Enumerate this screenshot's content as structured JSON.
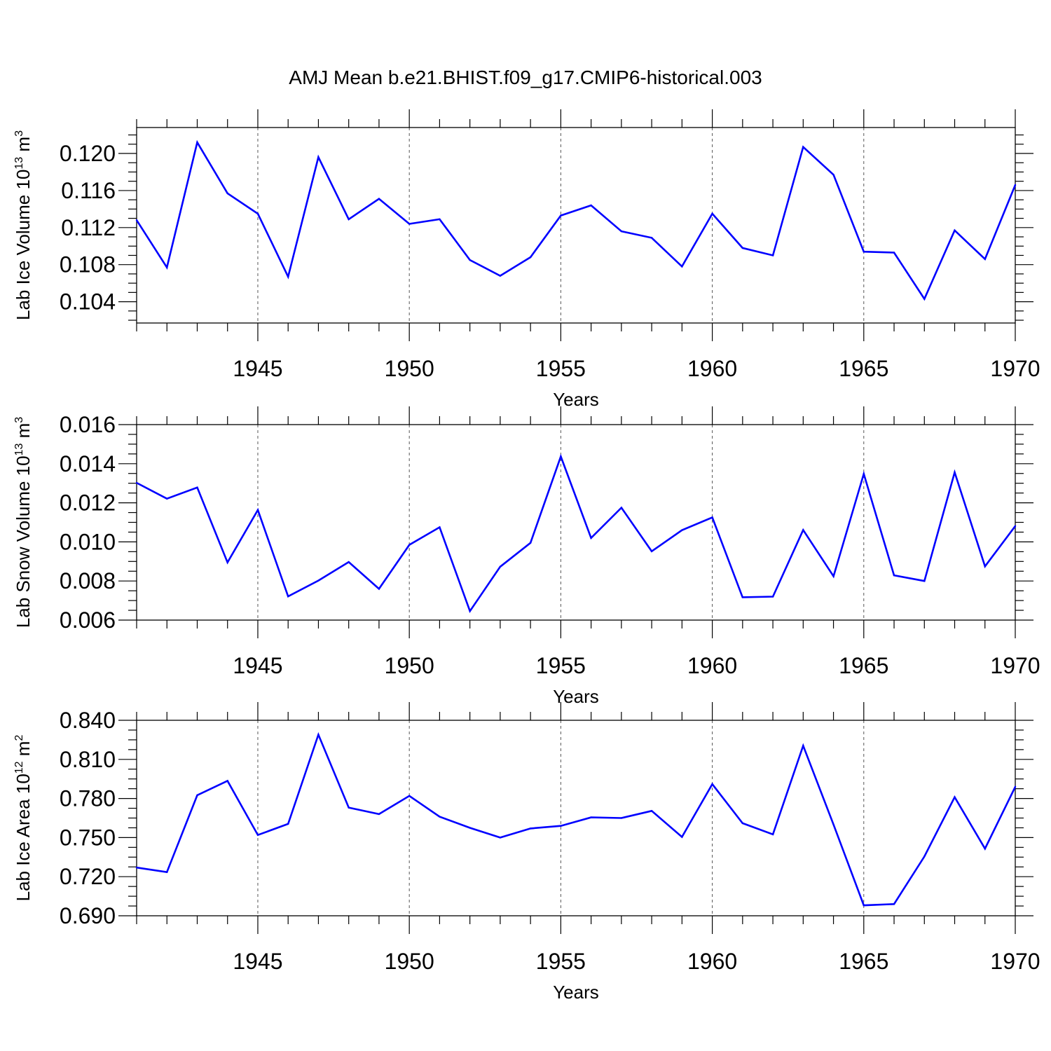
{
  "figure_title": "AMJ Mean b.e21.BHIST.f09_g17.CMIP6-historical.003",
  "line_color": "#0000ff",
  "chart_data": [
    {
      "type": "line",
      "title": "AMJ Mean b.e21.BHIST.f09_g17.CMIP6-historical.003",
      "xlabel": "Years",
      "ylabel_text": "Lab Ice Volume 10",
      "ylabel_exp": "13",
      "ylabel_unit": " m",
      "ylabel_unit_exp": "3",
      "xlim": [
        1941,
        1970
      ],
      "ylim": [
        0.1017,
        0.1228
      ],
      "xticks": [
        "1945",
        "1950",
        "1955",
        "1960",
        "1965",
        "1970"
      ],
      "yticks": [
        "0.104",
        "0.108",
        "0.112",
        "0.116",
        "0.120"
      ],
      "grid": "vertical dashed at major x ticks",
      "x": [
        1941,
        1942,
        1943,
        1944,
        1945,
        1946,
        1947,
        1948,
        1949,
        1950,
        1951,
        1952,
        1953,
        1954,
        1955,
        1956,
        1957,
        1958,
        1959,
        1960,
        1961,
        1962,
        1963,
        1964,
        1965,
        1966,
        1967,
        1968,
        1969,
        1970
      ],
      "y": [
        0.1128,
        0.1077,
        0.1212,
        0.1157,
        0.1135,
        0.1067,
        0.1196,
        0.1129,
        0.1151,
        0.1124,
        0.1129,
        0.1085,
        0.1068,
        0.1088,
        0.1133,
        0.1144,
        0.1116,
        0.1109,
        0.1078,
        0.1135,
        0.1098,
        0.109,
        0.1207,
        0.1177,
        0.1094,
        0.1093,
        0.1043,
        0.1117,
        0.1086,
        0.1166
      ]
    },
    {
      "type": "line",
      "xlabel": "Years",
      "ylabel_text": "Lab Snow Volume 10",
      "ylabel_exp": "13",
      "ylabel_unit": " m",
      "ylabel_unit_exp": "3",
      "xlim": [
        1941,
        1970
      ],
      "ylim": [
        0.006,
        0.016
      ],
      "xticks": [
        "1945",
        "1950",
        "1955",
        "1960",
        "1965",
        "1970"
      ],
      "yticks": [
        "0.006",
        "0.008",
        "0.010",
        "0.012",
        "0.014",
        "0.016"
      ],
      "grid": "vertical dashed at major x ticks",
      "x": [
        1941,
        1942,
        1943,
        1944,
        1945,
        1946,
        1947,
        1948,
        1949,
        1950,
        1951,
        1952,
        1953,
        1954,
        1955,
        1956,
        1957,
        1958,
        1959,
        1960,
        1961,
        1962,
        1963,
        1964,
        1965,
        1966,
        1967,
        1968,
        1969,
        1970
      ],
      "y": [
        0.01302,
        0.01221,
        0.01278,
        0.00895,
        0.01163,
        0.00721,
        0.00802,
        0.00897,
        0.0076,
        0.00985,
        0.01075,
        0.00646,
        0.00873,
        0.00995,
        0.01437,
        0.0102,
        0.01175,
        0.00952,
        0.0106,
        0.01125,
        0.00717,
        0.0072,
        0.01061,
        0.00824,
        0.01348,
        0.00829,
        0.008,
        0.01356,
        0.00875,
        0.01081
      ]
    },
    {
      "type": "line",
      "xlabel": "Years",
      "ylabel_text": "Lab Ice Area 10",
      "ylabel_exp": "12",
      "ylabel_unit": " m",
      "ylabel_unit_exp": "2",
      "xlim": [
        1941,
        1970
      ],
      "ylim": [
        0.69,
        0.84
      ],
      "xticks": [
        "1945",
        "1950",
        "1955",
        "1960",
        "1965",
        "1970"
      ],
      "yticks": [
        "0.690",
        "0.720",
        "0.750",
        "0.780",
        "0.810",
        "0.840"
      ],
      "grid": "vertical dashed at major x ticks",
      "x": [
        1941,
        1942,
        1943,
        1944,
        1945,
        1946,
        1947,
        1948,
        1949,
        1950,
        1951,
        1952,
        1953,
        1954,
        1955,
        1956,
        1957,
        1958,
        1959,
        1960,
        1961,
        1962,
        1963,
        1964,
        1965,
        1966,
        1967,
        1968,
        1969,
        1970
      ],
      "y": [
        0.727,
        0.7235,
        0.7825,
        0.7935,
        0.752,
        0.7605,
        0.829,
        0.773,
        0.768,
        0.782,
        0.766,
        0.7575,
        0.75,
        0.757,
        0.759,
        0.7655,
        0.765,
        0.7705,
        0.7505,
        0.791,
        0.761,
        0.7525,
        0.8205,
        0.76,
        0.698,
        0.699,
        0.7355,
        0.781,
        0.7415,
        0.789
      ]
    }
  ]
}
